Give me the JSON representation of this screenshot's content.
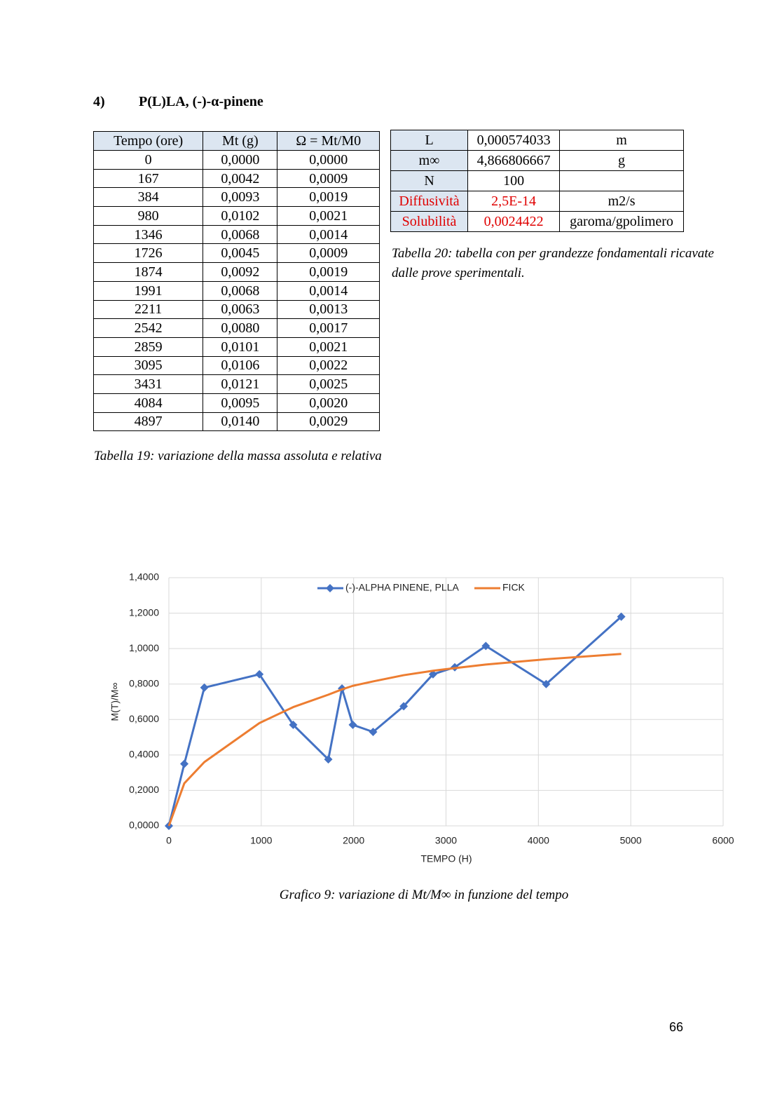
{
  "heading": {
    "number": "4)",
    "title": "P(L)LA, (-)-α-pinene"
  },
  "table19": {
    "header": [
      "Tempo (ore)",
      "Mt (g)",
      "Ω = Mt/M0"
    ],
    "rows": [
      [
        "0",
        "0,0000",
        "0,0000"
      ],
      [
        "167",
        "0,0042",
        "0,0009"
      ],
      [
        "384",
        "0,0093",
        "0,0019"
      ],
      [
        "980",
        "0,0102",
        "0,0021"
      ],
      [
        "1346",
        "0,0068",
        "0,0014"
      ],
      [
        "1726",
        "0,0045",
        "0,0009"
      ],
      [
        "1874",
        "0,0092",
        "0,0019"
      ],
      [
        "1991",
        "0,0068",
        "0,0014"
      ],
      [
        "2211",
        "0,0063",
        "0,0013"
      ],
      [
        "2542",
        "0,0080",
        "0,0017"
      ],
      [
        "2859",
        "0,0101",
        "0,0021"
      ],
      [
        "3095",
        "0,0106",
        "0,0022"
      ],
      [
        "3431",
        "0,0121",
        "0,0025"
      ],
      [
        "4084",
        "0,0095",
        "0,0020"
      ],
      [
        "4897",
        "0,0140",
        "0,0029"
      ]
    ],
    "caption": "Tabella 19: variazione della massa assoluta e relativa"
  },
  "table20": {
    "rows": [
      [
        "L",
        "0,000574033",
        "m"
      ],
      [
        "m∞",
        "4,866806667",
        "g"
      ],
      [
        "N",
        "100"
      ],
      [
        "Diffusività",
        "2,5E-14",
        "m2/s"
      ],
      [
        "Solubilità",
        "0,0024422",
        "garoma/gpolimero"
      ]
    ],
    "text_colors": [
      "#000000",
      "#000000",
      "#000000",
      "#e00000",
      "#e00000"
    ],
    "caption": "Tabella 20: tabella con per grandezze fondamentali ricavate dalle prove sperimentali."
  },
  "chart_data": {
    "type": "line",
    "x_label": "TEMPO (H)",
    "y_label": "M(T)/M∞",
    "x": [
      0,
      167,
      384,
      980,
      1346,
      1726,
      1874,
      1991,
      2211,
      2542,
      2859,
      3095,
      3431,
      4084,
      4897
    ],
    "series": [
      {
        "name": "(-)-ALPHA PINENE, PLLA",
        "color": "#4472c4",
        "marker": "diamond",
        "values": [
          0,
          0.35,
          0.78,
          0.855,
          0.57,
          0.375,
          0.775,
          0.57,
          0.53,
          0.675,
          0.855,
          0.895,
          1.015,
          0.8,
          1.18
        ]
      },
      {
        "name": "FICK",
        "color": "#ed7d31",
        "values": [
          0,
          0.24,
          0.36,
          0.58,
          0.67,
          0.74,
          0.77,
          0.79,
          0.815,
          0.85,
          0.875,
          0.89,
          0.91,
          0.94,
          0.97
        ]
      }
    ],
    "xlim": [
      0,
      6000
    ],
    "xticks": [
      0,
      1000,
      2000,
      3000,
      4000,
      5000,
      6000
    ],
    "ylim": [
      0,
      1.4
    ],
    "yticks": [
      {
        "value": 0,
        "label": "0,0000"
      },
      {
        "value": 0.2,
        "label": "0,2000"
      },
      {
        "value": 0.4,
        "label": "0,4000"
      },
      {
        "value": 0.6,
        "label": "0,6000"
      },
      {
        "value": 0.8,
        "label": "0,8000"
      },
      {
        "value": 1,
        "label": "1,0000"
      },
      {
        "value": 1.2,
        "label": "1,2000"
      },
      {
        "value": 1.4,
        "label": "1,4000"
      }
    ],
    "grid": true,
    "legend": "top"
  },
  "chart_caption": "Grafico 9: variazione di Mt/M∞ in funzione del tempo",
  "page_number": "66"
}
